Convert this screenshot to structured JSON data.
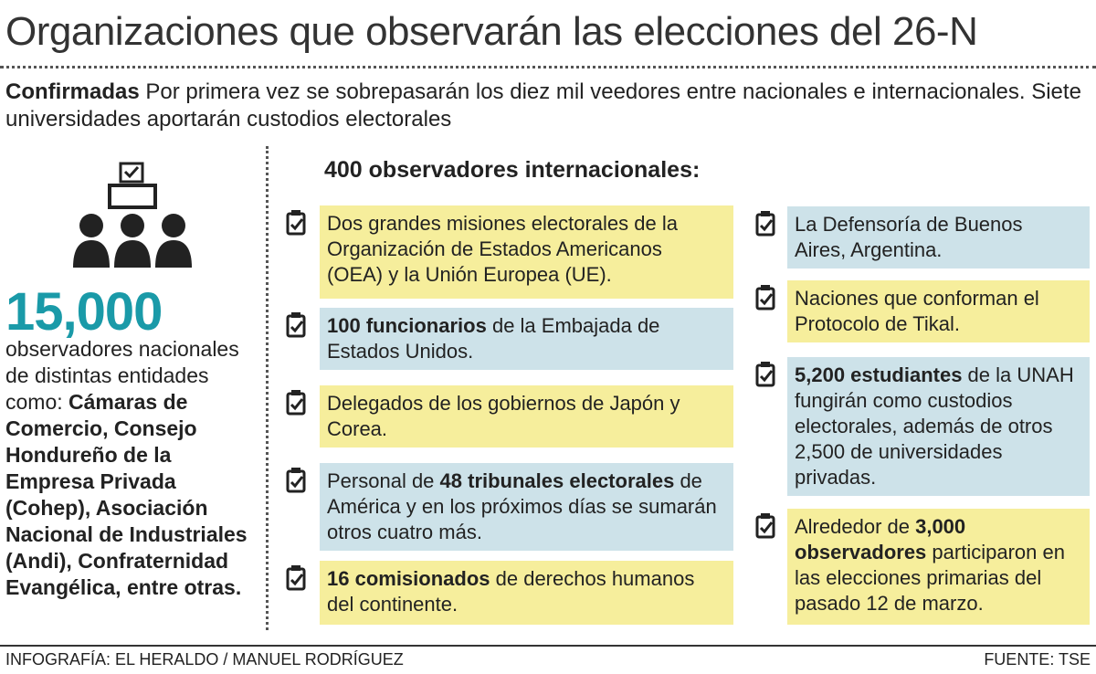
{
  "title": "Organizaciones que observarán las elecciones del 26-N",
  "subtitle": {
    "lead": "Confirmadas",
    "text": " Por primera vez se sobrepasarán los diez mil veedores entre nacionales e internacionales. Siete universidades aportarán custodios electorales"
  },
  "national": {
    "number": "15,000",
    "text": "observadores nacionales de distintas entidades como:",
    "entities": "Cámaras de Comercio, Consejo Hondureño de la Empresa Privada (Cohep), Asociación Nacional de Industriales (Andi), Confraternidad Evangélica, entre otras."
  },
  "international": {
    "heading": "400 observadores internacionales:",
    "columns": [
      [
        {
          "color": "#f6ee9c",
          "segments": [
            {
              "text": "Dos grandes misiones electorales de la Organización de Estados Americanos (OEA) y la Unión Europea (UE).",
              "bold": false
            }
          ]
        },
        {
          "color": "#cde2e9",
          "segments": [
            {
              "text": "100 funcionarios",
              "bold": true
            },
            {
              "text": " de la Embajada de Estados Unidos.",
              "bold": false
            }
          ]
        },
        {
          "color": "#f6ee9c",
          "segments": [
            {
              "text": "Delegados de los gobiernos de Japón y Corea.",
              "bold": false
            }
          ]
        },
        {
          "color": "#cde2e9",
          "segments": [
            {
              "text": "Personal de ",
              "bold": false
            },
            {
              "text": "48 tribunales electorales",
              "bold": true
            },
            {
              "text": " de América y en los próximos días se sumarán otros cuatro más.",
              "bold": false
            }
          ]
        },
        {
          "color": "#f6ee9c",
          "segments": [
            {
              "text": "16 comisionados",
              "bold": true
            },
            {
              "text": " de derechos humanos del continente.",
              "bold": false
            }
          ]
        }
      ],
      [
        {
          "color": "#cde2e9",
          "segments": [
            {
              "text": "La Defensoría de Buenos Aires, Argentina.",
              "bold": false
            }
          ]
        },
        {
          "color": "#f6ee9c",
          "segments": [
            {
              "text": "Naciones que conforman el Protocolo de Tikal.",
              "bold": false
            }
          ]
        },
        {
          "color": "#cde2e9",
          "segments": [
            {
              "text": "5,200 estudiantes",
              "bold": true
            },
            {
              "text": " de la UNAH fungirán como custodios electorales, además de otros 2,500 de universidades privadas.",
              "bold": false
            }
          ]
        },
        {
          "color": "#f6ee9c",
          "segments": [
            {
              "text": "Alrededor de ",
              "bold": false
            },
            {
              "text": "3,000 observadores",
              "bold": true
            },
            {
              "text": " participaron en las elecciones primarias del pasado 12 de marzo.",
              "bold": false
            }
          ]
        }
      ]
    ]
  },
  "footer": {
    "credit": "INFOGRAFÍA: EL HERALDO / MANUEL RODRÍGUEZ",
    "source": "FUENTE:  TSE"
  }
}
